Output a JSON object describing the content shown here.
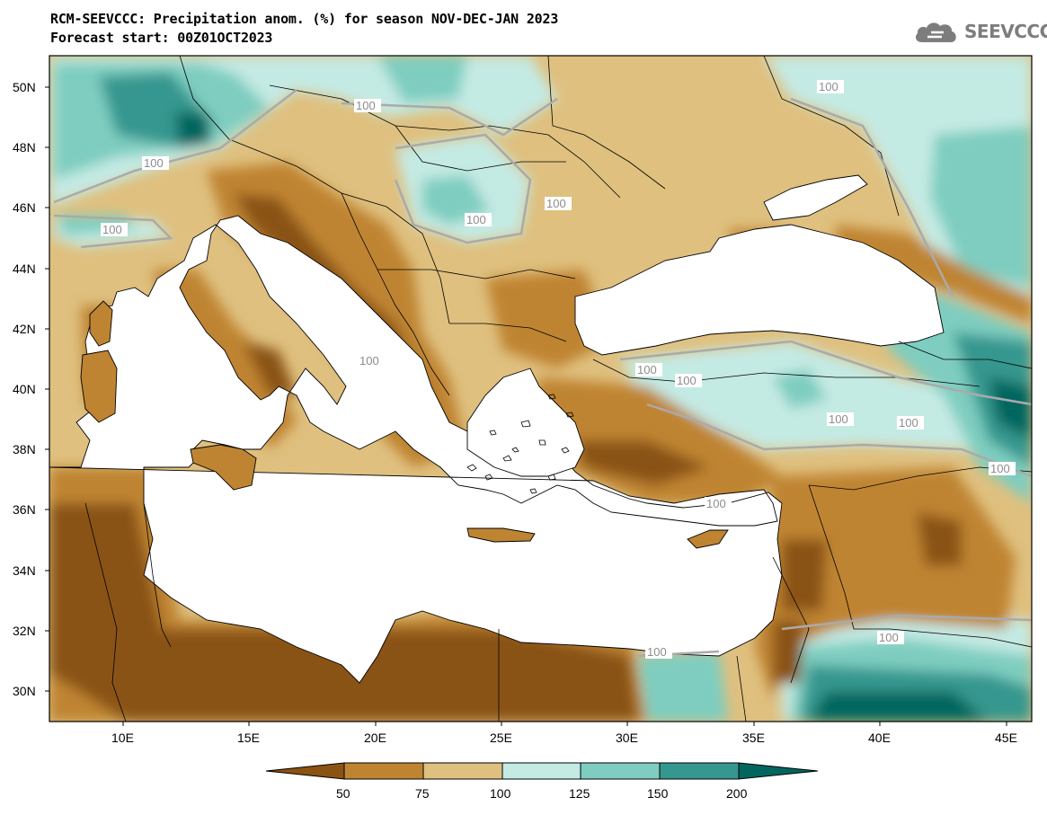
{
  "title": {
    "line1": "RCM-SEEVCCC: Precipitation anom. (%) for season NOV-DEC-JAN 2023",
    "line2": "Forecast start: 00Z01OCT2023"
  },
  "logo": {
    "text": "SEEVCCC",
    "icon": "cloud-icon"
  },
  "map": {
    "variable": "Precipitation anomaly (%)",
    "lon_range": [
      7,
      46
    ],
    "lat_range": [
      29,
      51
    ],
    "lon_ticks": [
      "10E",
      "15E",
      "20E",
      "25E",
      "30E",
      "35E",
      "40E",
      "45E"
    ],
    "lat_ticks": [
      "50N",
      "48N",
      "46N",
      "44N",
      "42N",
      "40N",
      "38N",
      "36N",
      "34N",
      "32N",
      "30N"
    ],
    "contour_labels": [
      "100",
      "100",
      "100",
      "100",
      "100",
      "100",
      "100",
      "100",
      "100",
      "100",
      "100",
      "100",
      "100",
      "100",
      "100"
    ],
    "colors": {
      "below50": "#8a5312",
      "50to75": "#bf8432",
      "75to100": "#dfc07f",
      "100to125": "#c4eae4",
      "125to150": "#7ecdc0",
      "150to200": "#35978f",
      "above200": "#01665e",
      "sea": "#ffffff",
      "contour": "#aaaaaa"
    }
  },
  "colorbar": {
    "labels": [
      "50",
      "75",
      "100",
      "125",
      "150",
      "200"
    ],
    "colors": [
      "#8a5312",
      "#bf8432",
      "#dfc07f",
      "#c4eae4",
      "#7ecdc0",
      "#35978f",
      "#01665e"
    ]
  }
}
